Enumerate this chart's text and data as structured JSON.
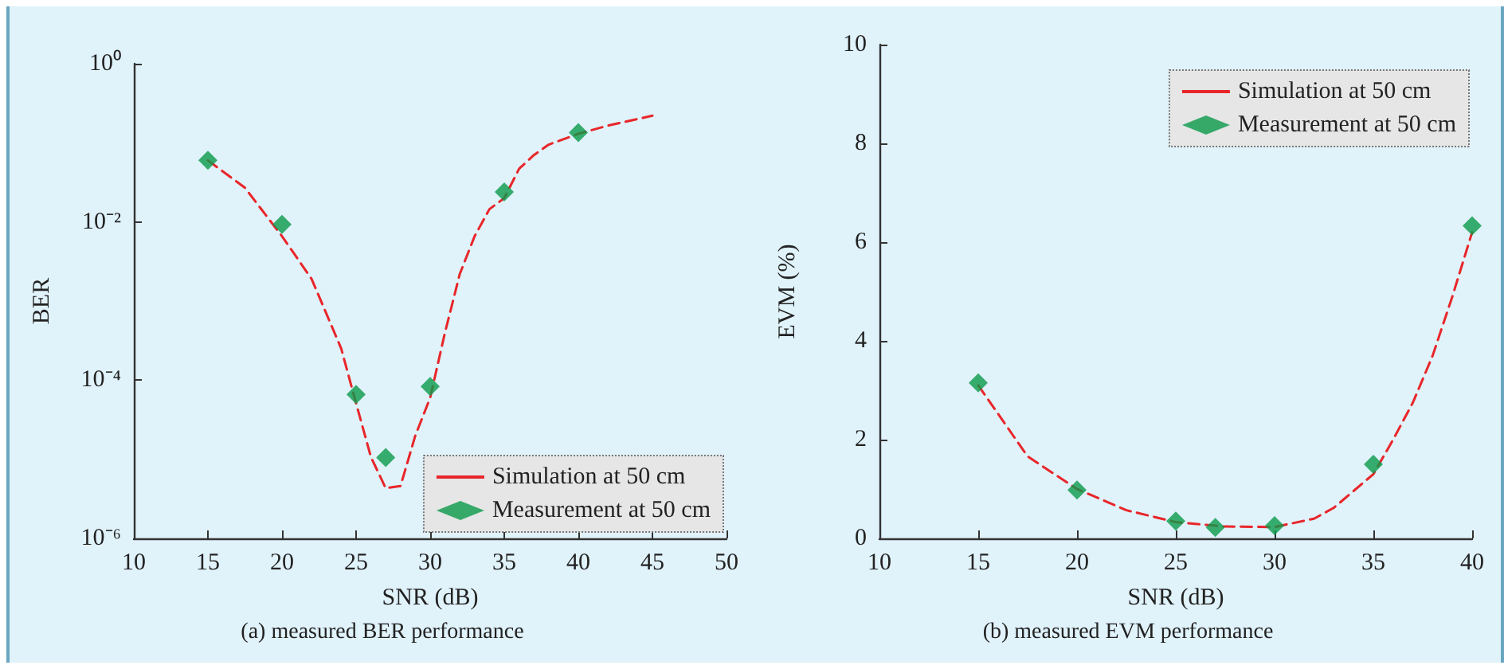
{
  "chart_data": [
    {
      "type": "line",
      "xlabel": "SNR (dB)",
      "ylabel": "BER",
      "annotations": [
        "(a) measured BER performance"
      ],
      "xlim": [
        10,
        50
      ],
      "xticks": [
        10,
        15,
        20,
        25,
        30,
        35,
        40,
        45,
        50
      ],
      "ylim": [
        1e-06,
        1
      ],
      "log": "y",
      "yticks": [
        {
          "value": 1e-06,
          "label": "10⁻⁶"
        },
        {
          "value": 0.0001,
          "label": "10⁻⁴"
        },
        {
          "value": 0.01,
          "label": "10⁻²"
        },
        {
          "value": 1,
          "label": "10⁰"
        }
      ],
      "grid": false,
      "legend": "bottom right",
      "series": [
        {
          "name": "Simulation at 50 cm",
          "type": "line",
          "color": "#e8262a",
          "marker": "none",
          "line_style": "dashed",
          "x": [
            15,
            17.5,
            20,
            22,
            24,
            25,
            26,
            27,
            28,
            29,
            30,
            31,
            32,
            33,
            34,
            35,
            36,
            37,
            38,
            40,
            42,
            45
          ],
          "values": [
            0.06,
            0.027,
            0.0066,
            0.0019,
            0.00025,
            5.1e-05,
            1.07e-05,
            4.3e-06,
            4.6e-06,
            2e-05,
            6e-05,
            0.0004,
            0.0022,
            0.0066,
            0.0145,
            0.02,
            0.047,
            0.07,
            0.095,
            0.13,
            0.165,
            0.22
          ]
        },
        {
          "name": "Measurement at 50 cm",
          "type": "scatter",
          "color": "#0a9a4a",
          "marker": "diamond",
          "x": [
            15,
            20,
            25,
            27,
            30,
            35,
            40
          ],
          "values": [
            0.06,
            0.0093,
            6.6e-05,
            1.05e-05,
            8.3e-05,
            0.024,
            0.135
          ]
        }
      ]
    },
    {
      "type": "line",
      "xlabel": "SNR (dB)",
      "ylabel": "EVM (%)",
      "annotations": [
        "(b) measured EVM performance"
      ],
      "xlim": [
        10,
        40
      ],
      "xticks": [
        10,
        15,
        20,
        25,
        30,
        35,
        40
      ],
      "ylim": [
        0,
        10
      ],
      "yticks": [
        0,
        2,
        4,
        6,
        8,
        10
      ],
      "grid": false,
      "legend": "top right",
      "series": [
        {
          "name": "Simulation at 50 cm",
          "type": "line",
          "color": "#e8262a",
          "marker": "none",
          "line_style": "dashed",
          "x": [
            15,
            17.5,
            20,
            22.5,
            25,
            27.5,
            30,
            32,
            33,
            35,
            36,
            37,
            38,
            39,
            40
          ],
          "values": [
            3.1,
            1.66,
            1.0,
            0.57,
            0.33,
            0.24,
            0.23,
            0.4,
            0.62,
            1.3,
            2.0,
            2.75,
            3.7,
            4.9,
            6.2
          ]
        },
        {
          "name": "Measurement at 50 cm",
          "type": "scatter",
          "color": "#0a9a4a",
          "marker": "diamond",
          "x": [
            15,
            20,
            25,
            27,
            30,
            35,
            40
          ],
          "values": [
            3.15,
            0.98,
            0.35,
            0.22,
            0.26,
            1.5,
            6.33
          ]
        }
      ]
    }
  ]
}
